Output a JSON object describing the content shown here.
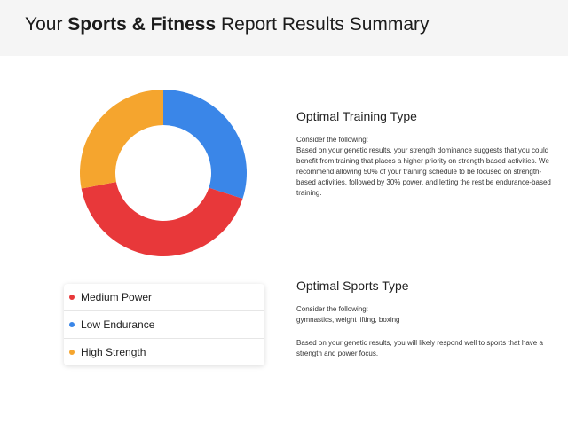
{
  "header": {
    "title_prefix": "Your ",
    "title_bold": "Sports & Fitness",
    "title_suffix": " Report Results Summary"
  },
  "chart_data": {
    "type": "pie",
    "donut": true,
    "start_angle_deg": 0,
    "slices": [
      {
        "name": "Low Endurance",
        "value": 30,
        "color": "#3a86e8"
      },
      {
        "name": "Medium Power",
        "value": 42,
        "color": "#e8383a"
      },
      {
        "name": "High Strength",
        "value": 28,
        "color": "#f5a52e"
      }
    ],
    "legend": [
      {
        "label": "Medium Power",
        "color": "#e8383a"
      },
      {
        "label": "Low Endurance",
        "color": "#3a86e8"
      },
      {
        "label": "High Strength",
        "color": "#f5a52e"
      }
    ],
    "legend_position": "bottom-left"
  },
  "training": {
    "title": "Optimal Training Type",
    "sub": "Consider the following:",
    "text": "Based on your genetic results, your strength dominance suggests that you could benefit from training that places a higher priority on strength-based activities. We recommend allowing 50% of your training schedule to be focused on strength-based activities, followed by 30% power, and letting the rest be endurance-based training."
  },
  "sports": {
    "title": "Optimal Sports Type",
    "sub": "Consider the following:",
    "list": "gymnastics, weight lifting, boxing",
    "text": "Based on your genetic results, you will likely respond well to sports that have a strength and power focus."
  }
}
